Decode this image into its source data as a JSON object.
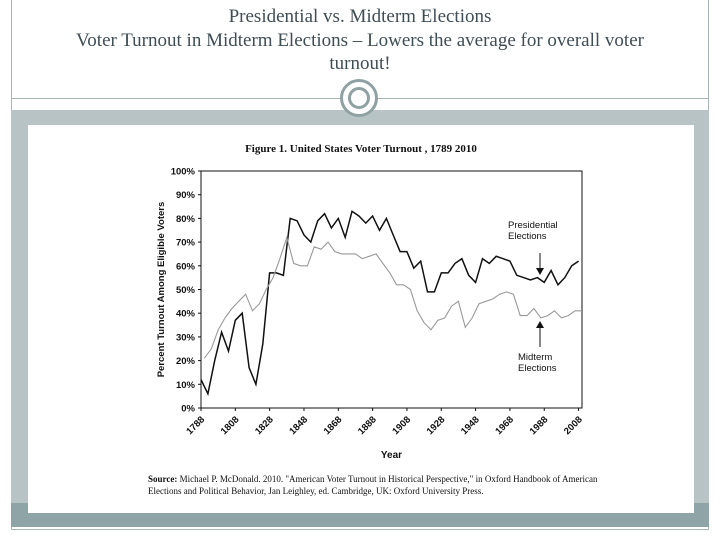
{
  "slide": {
    "title_line1": "Presidential vs. Midterm Elections",
    "title_line2": "Voter Turnout in Midterm Elections – Lowers the average for overall voter",
    "title_line3": "turnout!"
  },
  "figure": {
    "title": "Figure 1. United States Voter Turnout , 1789   2010",
    "source_label": "Source:",
    "source_text": "Michael P. McDonald. 2010. \"American Voter Turnout in Historical Perspective,\" in Oxford Handbook of American Elections and Political Behavior, Jan Leighley, ed. Cambridge, UK: Oxford University Press."
  },
  "chart_data": {
    "type": "line",
    "title": "Figure 1. United States Voter Turnout , 1789   2010",
    "xlabel": "Year",
    "ylabel": "Percent Turnout Among Eligible Voters",
    "xlim": [
      1788,
      2010
    ],
    "ylim": [
      0,
      100
    ],
    "x_ticks": [
      "1788",
      "1808",
      "1828",
      "1848",
      "1868",
      "1888",
      "1908",
      "1928",
      "1948",
      "1968",
      "1988",
      "2008"
    ],
    "y_ticks": [
      "0%",
      "10%",
      "20%",
      "30%",
      "40%",
      "50%",
      "60%",
      "70%",
      "80%",
      "90%",
      "100%"
    ],
    "grid": false,
    "annotations": [
      "Presidential Elections",
      "Midterm Elections"
    ],
    "series": [
      {
        "name": "Presidential Elections",
        "color": "#111111",
        "points": [
          [
            1788,
            12
          ],
          [
            1792,
            6
          ],
          [
            1796,
            20
          ],
          [
            1800,
            32
          ],
          [
            1804,
            24
          ],
          [
            1808,
            37
          ],
          [
            1812,
            40
          ],
          [
            1816,
            17
          ],
          [
            1820,
            10
          ],
          [
            1824,
            27
          ],
          [
            1828,
            57
          ],
          [
            1832,
            57
          ],
          [
            1836,
            56
          ],
          [
            1840,
            80
          ],
          [
            1844,
            79
          ],
          [
            1848,
            73
          ],
          [
            1852,
            70
          ],
          [
            1856,
            79
          ],
          [
            1860,
            82
          ],
          [
            1864,
            76
          ],
          [
            1868,
            80
          ],
          [
            1872,
            72
          ],
          [
            1876,
            83
          ],
          [
            1880,
            81
          ],
          [
            1884,
            78
          ],
          [
            1888,
            81
          ],
          [
            1892,
            75
          ],
          [
            1896,
            80
          ],
          [
            1900,
            73
          ],
          [
            1904,
            66
          ],
          [
            1908,
            66
          ],
          [
            1912,
            59
          ],
          [
            1916,
            62
          ],
          [
            1920,
            49
          ],
          [
            1924,
            49
          ],
          [
            1928,
            57
          ],
          [
            1932,
            57
          ],
          [
            1936,
            61
          ],
          [
            1940,
            63
          ],
          [
            1944,
            56
          ],
          [
            1948,
            53
          ],
          [
            1952,
            63
          ],
          [
            1956,
            61
          ],
          [
            1960,
            64
          ],
          [
            1964,
            63
          ],
          [
            1968,
            62
          ],
          [
            1972,
            56
          ],
          [
            1976,
            55
          ],
          [
            1980,
            54
          ],
          [
            1984,
            55
          ],
          [
            1988,
            53
          ],
          [
            1992,
            58
          ],
          [
            1996,
            52
          ],
          [
            2000,
            55
          ],
          [
            2004,
            60
          ],
          [
            2008,
            62
          ]
        ]
      },
      {
        "name": "Midterm Elections",
        "color": "#999999",
        "points": [
          [
            1790,
            21
          ],
          [
            1794,
            25
          ],
          [
            1798,
            33
          ],
          [
            1802,
            38
          ],
          [
            1806,
            42
          ],
          [
            1810,
            45
          ],
          [
            1814,
            48
          ],
          [
            1818,
            41
          ],
          [
            1822,
            44
          ],
          [
            1826,
            50
          ],
          [
            1830,
            55
          ],
          [
            1834,
            63
          ],
          [
            1838,
            72
          ],
          [
            1842,
            61
          ],
          [
            1846,
            60
          ],
          [
            1850,
            60
          ],
          [
            1854,
            68
          ],
          [
            1858,
            67
          ],
          [
            1862,
            70
          ],
          [
            1866,
            66
          ],
          [
            1870,
            65
          ],
          [
            1874,
            65
          ],
          [
            1878,
            65
          ],
          [
            1882,
            63
          ],
          [
            1886,
            64
          ],
          [
            1890,
            65
          ],
          [
            1894,
            61
          ],
          [
            1898,
            57
          ],
          [
            1902,
            52
          ],
          [
            1906,
            52
          ],
          [
            1910,
            50
          ],
          [
            1914,
            41
          ],
          [
            1918,
            36
          ],
          [
            1922,
            33
          ],
          [
            1926,
            37
          ],
          [
            1930,
            38
          ],
          [
            1934,
            43
          ],
          [
            1938,
            45
          ],
          [
            1942,
            34
          ],
          [
            1946,
            38
          ],
          [
            1950,
            44
          ],
          [
            1954,
            45
          ],
          [
            1958,
            46
          ],
          [
            1962,
            48
          ],
          [
            1966,
            49
          ],
          [
            1970,
            48
          ],
          [
            1974,
            39
          ],
          [
            1978,
            39
          ],
          [
            1982,
            42
          ],
          [
            1986,
            38
          ],
          [
            1990,
            39
          ],
          [
            1994,
            41
          ],
          [
            1998,
            38
          ],
          [
            2002,
            39
          ],
          [
            2006,
            41
          ],
          [
            2010,
            41
          ]
        ]
      }
    ]
  }
}
